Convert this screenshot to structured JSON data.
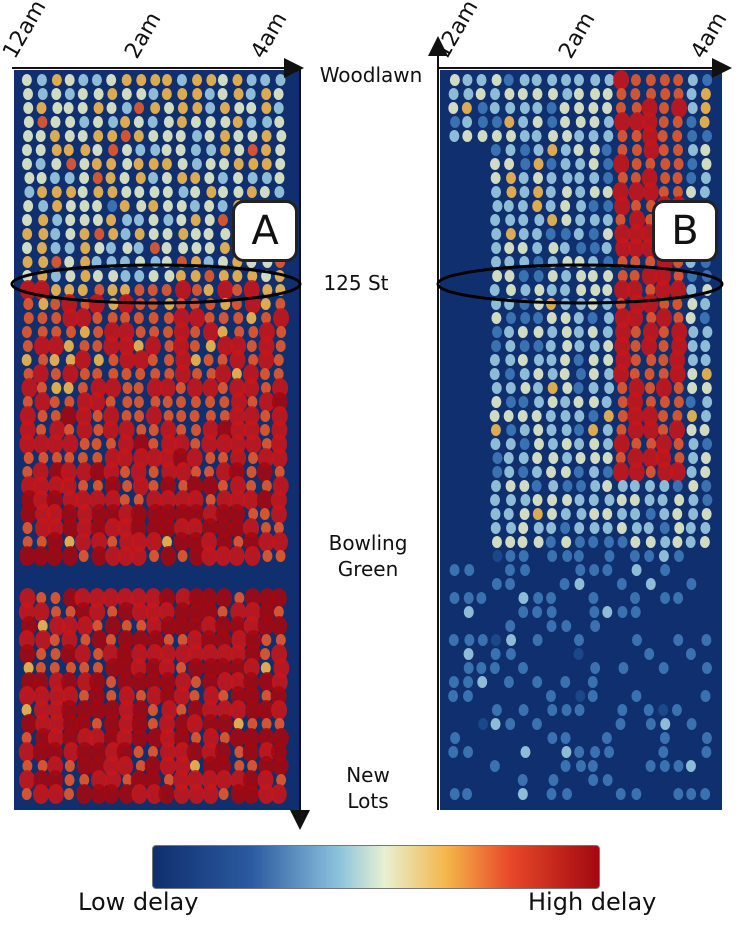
{
  "chart_data": [
    {
      "type": "heatmap",
      "panel_label": "A",
      "x_ticks": [
        "12am",
        "2am",
        "4am"
      ],
      "y_stations": [
        "Woodlawn",
        "125 St",
        "Bowling Green",
        "New Lots"
      ],
      "highlighted_station": "125 St",
      "colorbar": {
        "low_label": "Low delay",
        "high_label": "High delay"
      }
    },
    {
      "type": "heatmap",
      "panel_label": "B",
      "x_ticks": [
        "12am",
        "2am",
        "4am"
      ],
      "y_stations": [
        "Woodlawn",
        "125 St",
        "Bowling Green",
        "New Lots"
      ],
      "highlighted_station": "125 St",
      "colorbar": {
        "low_label": "Low delay",
        "high_label": "High delay"
      }
    }
  ],
  "labels": {
    "panel_a": "A",
    "panel_b": "B",
    "ticks": [
      "12am",
      "2am",
      "4am"
    ],
    "stations": [
      "Woodlawn",
      "125 St",
      "Bowling",
      "Green",
      "New",
      "Lots"
    ],
    "colorbar_low": "Low delay",
    "colorbar_high": "High delay"
  },
  "colors": {
    "background": "#0f2f6e",
    "low": "#0f2f6e",
    "mid": "#e8f0d0",
    "high": "#a30810"
  }
}
